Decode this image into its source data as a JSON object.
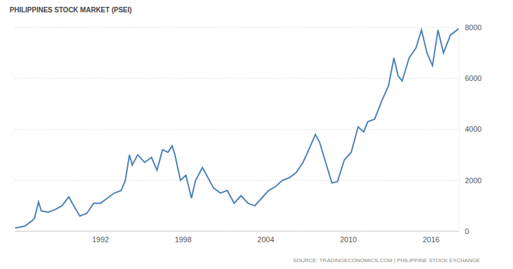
{
  "chart_data": {
    "type": "line",
    "title": "PHILIPPINES STOCK MARKET (PSEI)",
    "source": "SOURCE: TRADINGECONOMICS.COM | PHILIPPINE STOCK EXCHANGE",
    "x": [
      1985.8,
      1986.5,
      1987.0,
      1987.2,
      1987.5,
      1987.7,
      1988.2,
      1988.7,
      1989.2,
      1989.7,
      1990.0,
      1990.5,
      1991.0,
      1991.5,
      1992.0,
      1992.5,
      1993.0,
      1993.5,
      1993.8,
      1994.1,
      1994.3,
      1994.7,
      1995.2,
      1995.7,
      1996.1,
      1996.5,
      1996.9,
      1997.2,
      1997.4,
      1997.8,
      1998.2,
      1998.6,
      1998.9,
      1999.4,
      1999.8,
      2000.2,
      2000.7,
      2001.2,
      2001.7,
      2002.2,
      2002.7,
      2003.2,
      2003.7,
      2004.2,
      2004.7,
      2005.2,
      2005.7,
      2006.2,
      2006.7,
      2007.2,
      2007.6,
      2007.9,
      2008.4,
      2008.8,
      2009.2,
      2009.7,
      2010.2,
      2010.7,
      2011.1,
      2011.4,
      2011.9,
      2012.4,
      2012.9,
      2013.3,
      2013.6,
      2013.9,
      2014.4,
      2014.9,
      2015.3,
      2015.7,
      2016.1,
      2016.5,
      2016.9,
      2017.4,
      2018.0
    ],
    "series": [
      {
        "name": "PSEI",
        "color": "#4a80b8",
        "values": [
          130,
          200,
          400,
          500,
          1150,
          800,
          750,
          850,
          1000,
          1350,
          1050,
          600,
          700,
          1100,
          1100,
          1300,
          1500,
          1600,
          2000,
          3000,
          2600,
          3000,
          2700,
          2900,
          2400,
          3200,
          3100,
          3350,
          3000,
          2000,
          2200,
          1300,
          2000,
          2500,
          2100,
          1700,
          1500,
          1600,
          1100,
          1400,
          1100,
          1000,
          1300,
          1600,
          1750,
          2000,
          2100,
          2300,
          2700,
          3300,
          3800,
          3500,
          2600,
          1900,
          1950,
          2800,
          3100,
          4100,
          3900,
          4300,
          4400,
          5100,
          5700,
          6800,
          6100,
          5900,
          6800,
          7200,
          7900,
          7000,
          6500,
          7900,
          7000,
          7700,
          7950
        ]
      }
    ],
    "xlim": [
      1985.8,
      2018.05
    ],
    "xticks": [
      1992,
      1998,
      2004,
      2010,
      2016
    ],
    "ylim": [
      0,
      8000
    ],
    "yticks": [
      0,
      2000,
      4000,
      6000,
      8000
    ],
    "grid": true
  }
}
